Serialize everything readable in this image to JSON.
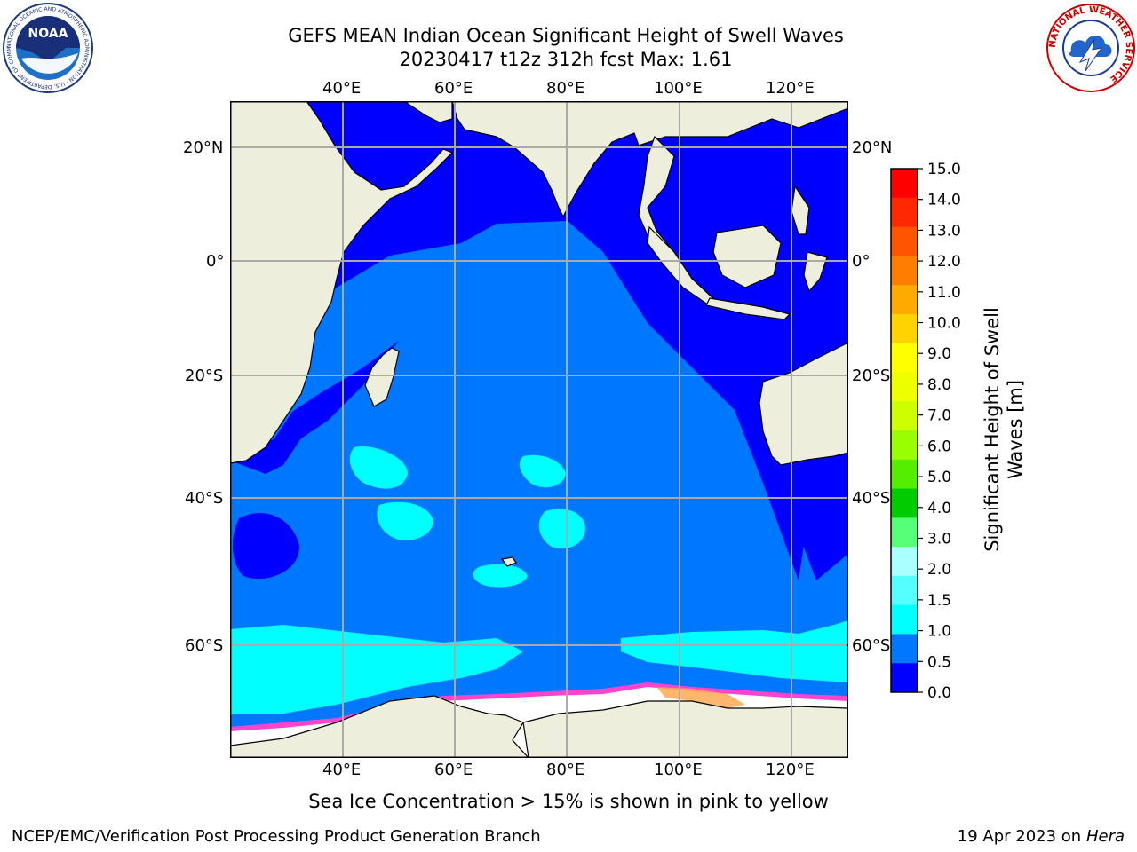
{
  "header": {
    "title_line1": "GEFS MEAN Indian Ocean Significant Height of Swell Waves",
    "title_line2": "20230417 t12z 312h fcst   Max: 1.61"
  },
  "logos": {
    "left": {
      "name": "NOAA",
      "ring_text": "NATIONAL OCEANIC AND ATMOSPHERIC ADMINISTRATION · U.S. DEPARTMENT OF COMMERCE"
    },
    "right": {
      "name": "NATIONAL WEATHER SERVICE"
    }
  },
  "map": {
    "lon_labels": [
      "40°E",
      "60°E",
      "80°E",
      "100°E",
      "120°E"
    ],
    "lat_labels_left": [
      "20°N",
      "0°",
      "20°S",
      "40°S",
      "60°S"
    ],
    "lat_labels_right": [
      "20°N",
      "0°",
      "20°S",
      "40°S",
      "60°S"
    ],
    "colors": {
      "land": "#eeeedd",
      "wave_0_0_5": "#0000ff",
      "wave_0_5_1_0": "#0077ff",
      "wave_1_0_1_5": "#00ffff",
      "ice": "#ffffff",
      "ice_edge": "#ff44cc",
      "ice_warm": "#ffaa55"
    }
  },
  "colorbar": {
    "label_line1": "Significant Height of Swell",
    "label_line2": "Waves [m]",
    "ticks": [
      "15.0",
      "14.0",
      "13.0",
      "12.0",
      "11.0",
      "10.0",
      "9.0",
      "8.0",
      "7.0",
      "6.0",
      "5.0",
      "4.0",
      "3.0",
      "2.0",
      "1.5",
      "1.0",
      "0.5",
      "0.0"
    ],
    "colors_top_to_bottom": [
      "#ff0000",
      "#ff2800",
      "#ff5500",
      "#ff7d00",
      "#ffaa00",
      "#ffd200",
      "#ffff00",
      "#eeff00",
      "#ccff00",
      "#99ff00",
      "#55ee00",
      "#00cc00",
      "#55ff77",
      "#aaffff",
      "#55ffff",
      "#00ffff",
      "#0077ff",
      "#0000ff"
    ]
  },
  "footer": {
    "note": "Sea Ice Concentration > 15% is shown in pink to yellow",
    "left": "NCEP/EMC/Verification Post Processing Product Generation Branch",
    "right_prefix": "19 Apr 2023 on ",
    "right_host": "Hera"
  }
}
